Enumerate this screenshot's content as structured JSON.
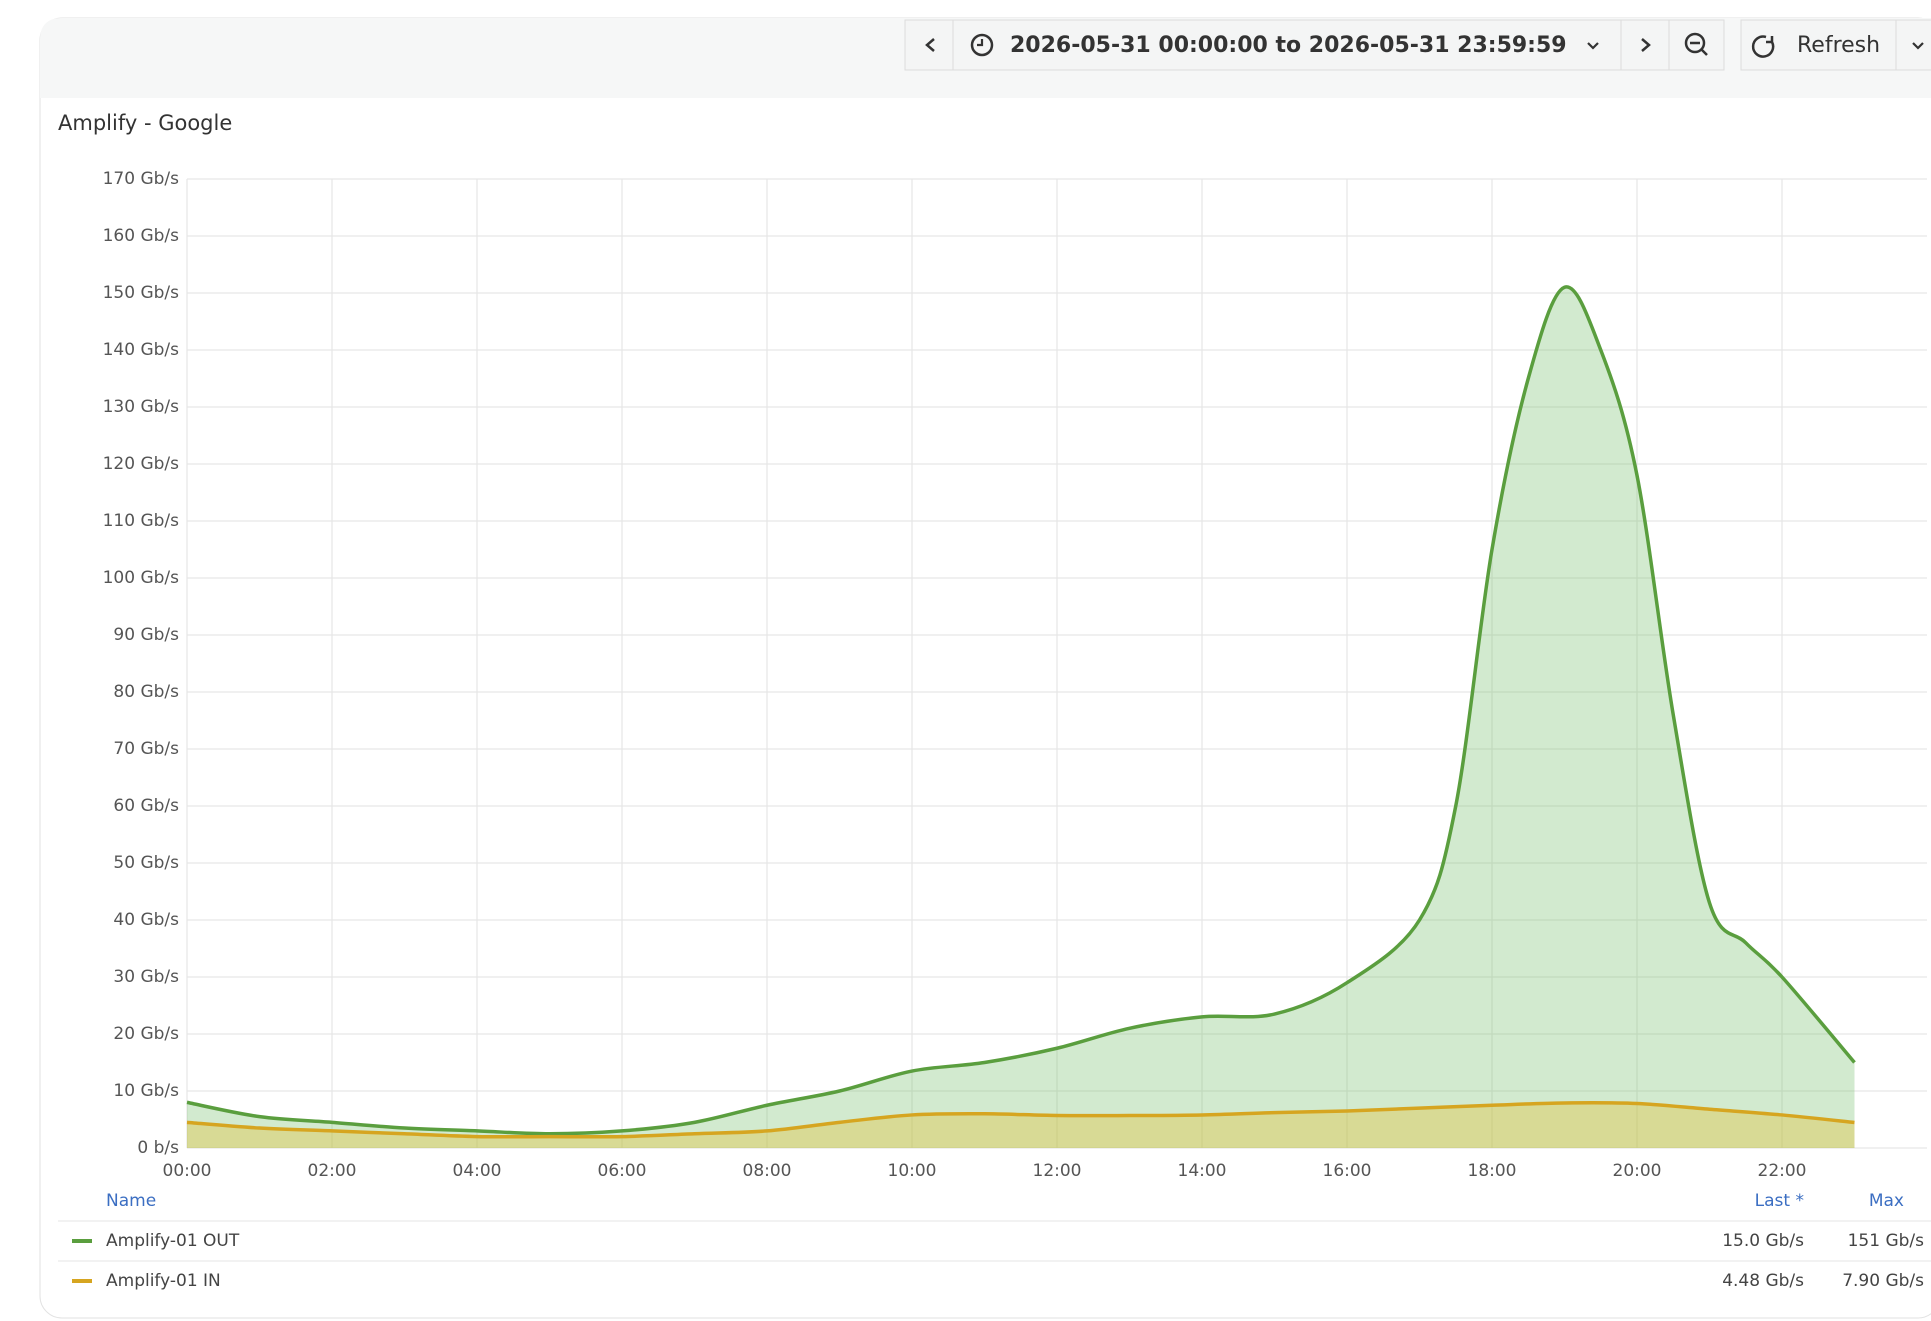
{
  "toolbar": {
    "time_range": "2026-05-31 00:00:00 to 2026-05-31 23:59:59",
    "refresh": "Refresh"
  },
  "chart_data": {
    "type": "area",
    "title": "Amplify - Google",
    "xlim": [
      0,
      24
    ],
    "xticks": [
      {
        "value": 0,
        "label": "00:00"
      },
      {
        "value": 2,
        "label": "02:00"
      },
      {
        "value": 4,
        "label": "04:00"
      },
      {
        "value": 6,
        "label": "06:00"
      },
      {
        "value": 8,
        "label": "08:00"
      },
      {
        "value": 10,
        "label": "10:00"
      },
      {
        "value": 12,
        "label": "12:00"
      },
      {
        "value": 14,
        "label": "14:00"
      },
      {
        "value": 16,
        "label": "16:00"
      },
      {
        "value": 18,
        "label": "18:00"
      },
      {
        "value": 20,
        "label": "20:00"
      },
      {
        "value": 22,
        "label": "22:00"
      }
    ],
    "ylim": [
      0,
      170
    ],
    "yticks": [
      {
        "value": 0,
        "label": "0 b/s"
      },
      {
        "value": 10,
        "label": "10 Gb/s"
      },
      {
        "value": 20,
        "label": "20 Gb/s"
      },
      {
        "value": 30,
        "label": "30 Gb/s"
      },
      {
        "value": 40,
        "label": "40 Gb/s"
      },
      {
        "value": 50,
        "label": "50 Gb/s"
      },
      {
        "value": 60,
        "label": "60 Gb/s"
      },
      {
        "value": 70,
        "label": "70 Gb/s"
      },
      {
        "value": 80,
        "label": "80 Gb/s"
      },
      {
        "value": 90,
        "label": "90 Gb/s"
      },
      {
        "value": 100,
        "label": "100 Gb/s"
      },
      {
        "value": 110,
        "label": "110 Gb/s"
      },
      {
        "value": 120,
        "label": "120 Gb/s"
      },
      {
        "value": 130,
        "label": "130 Gb/s"
      },
      {
        "value": 140,
        "label": "140 Gb/s"
      },
      {
        "value": 150,
        "label": "150 Gb/s"
      },
      {
        "value": 160,
        "label": "160 Gb/s"
      },
      {
        "value": 170,
        "label": "170 Gb/s"
      }
    ],
    "grid": true,
    "legend_columns": {
      "name": "Name",
      "last": "Last *",
      "max": "Max"
    },
    "series": [
      {
        "name": "Amplify-01 OUT",
        "color": "#5a9e3e",
        "fill": "rgba(115,191,105,0.32)",
        "last": "15.0 Gb/s",
        "max": "151 Gb/s",
        "x": [
          0,
          1,
          2,
          3,
          4,
          5,
          6,
          7,
          8,
          9,
          10,
          11,
          12,
          13,
          14,
          15,
          16,
          17,
          17.5,
          18,
          18.5,
          19,
          19.5,
          20,
          20.5,
          21,
          21.5,
          22,
          23
        ],
        "values": [
          8,
          5.5,
          4.5,
          3.5,
          3,
          2.5,
          3,
          4.5,
          7.5,
          10,
          13.5,
          15,
          17.5,
          21,
          23,
          23.5,
          29,
          40,
          60,
          105,
          135,
          151,
          140,
          118,
          76,
          43,
          36,
          30,
          15
        ]
      },
      {
        "name": "Amplify-01 IN",
        "color": "#d6a520",
        "fill": "rgba(230,190,40,0.35)",
        "last": "4.48 Gb/s",
        "max": "7.90 Gb/s",
        "x": [
          0,
          1,
          2,
          3,
          4,
          5,
          6,
          7,
          8,
          9,
          10,
          11,
          12,
          13,
          14,
          15,
          16,
          17,
          18,
          19,
          20,
          21,
          22,
          23
        ],
        "values": [
          4.5,
          3.5,
          3,
          2.5,
          2,
          2,
          2,
          2.5,
          3,
          4.5,
          5.8,
          6,
          5.7,
          5.7,
          5.8,
          6.2,
          6.5,
          7,
          7.5,
          7.9,
          7.8,
          6.8,
          5.8,
          4.48
        ]
      }
    ]
  }
}
